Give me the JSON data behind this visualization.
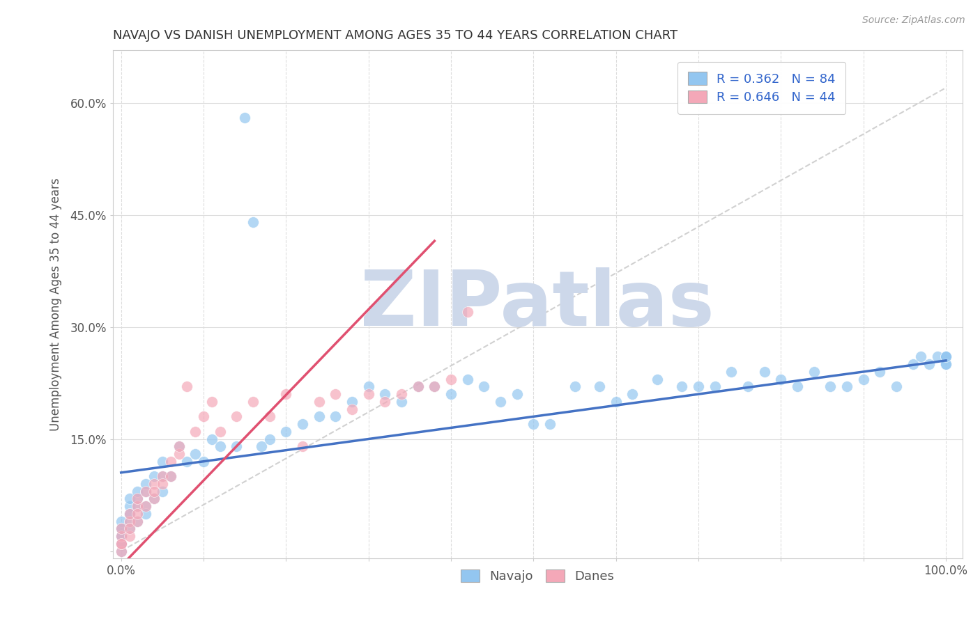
{
  "title": "NAVAJO VS DANISH UNEMPLOYMENT AMONG AGES 35 TO 44 YEARS CORRELATION CHART",
  "source": "Source: ZipAtlas.com",
  "ylabel": "Unemployment Among Ages 35 to 44 years",
  "xlim": [
    -0.01,
    1.02
  ],
  "ylim": [
    -0.01,
    0.67
  ],
  "xticks": [
    0.0,
    0.1,
    0.2,
    0.3,
    0.4,
    0.5,
    0.6,
    0.7,
    0.8,
    0.9,
    1.0
  ],
  "ytick_vals": [
    0.0,
    0.15,
    0.3,
    0.45,
    0.6
  ],
  "yticklabels": [
    "",
    "15.0%",
    "30.0%",
    "45.0%",
    "60.0%"
  ],
  "navajo_R": 0.362,
  "navajo_N": 84,
  "danes_R": 0.646,
  "danes_N": 44,
  "navajo_color": "#93c6f0",
  "danes_color": "#f4a8b8",
  "navajo_line_color": "#4472c4",
  "danes_line_color": "#e05070",
  "ref_line_color": "#cccccc",
  "background_color": "#ffffff",
  "grid_color": "#dddddd",
  "watermark_color": "#cdd8ea",
  "title_color": "#333333",
  "axis_label_color": "#555555",
  "tick_label_color": "#555555",
  "legend_text_color": "#3366cc",
  "navajo_line_x0": 0.0,
  "navajo_line_y0": 0.105,
  "navajo_line_x1": 1.0,
  "navajo_line_y1": 0.255,
  "danes_line_x0": 0.0,
  "danes_line_y0": -0.02,
  "danes_line_x1": 0.38,
  "danes_line_y1": 0.415,
  "navajo_x": [
    0.0,
    0.0,
    0.0,
    0.0,
    0.0,
    0.0,
    0.0,
    0.0,
    0.01,
    0.01,
    0.01,
    0.01,
    0.01,
    0.01,
    0.02,
    0.02,
    0.02,
    0.02,
    0.03,
    0.03,
    0.03,
    0.03,
    0.04,
    0.04,
    0.05,
    0.05,
    0.05,
    0.06,
    0.07,
    0.08,
    0.09,
    0.1,
    0.11,
    0.12,
    0.14,
    0.15,
    0.16,
    0.17,
    0.18,
    0.2,
    0.22,
    0.24,
    0.26,
    0.28,
    0.3,
    0.32,
    0.34,
    0.36,
    0.38,
    0.4,
    0.42,
    0.44,
    0.46,
    0.48,
    0.5,
    0.52,
    0.55,
    0.58,
    0.6,
    0.62,
    0.65,
    0.68,
    0.7,
    0.72,
    0.74,
    0.76,
    0.78,
    0.8,
    0.82,
    0.84,
    0.86,
    0.88,
    0.9,
    0.92,
    0.94,
    0.96,
    0.97,
    0.98,
    0.99,
    1.0,
    1.0,
    1.0,
    1.0,
    1.0
  ],
  "navajo_y": [
    0.0,
    0.01,
    0.02,
    0.01,
    0.03,
    0.02,
    0.04,
    0.03,
    0.05,
    0.04,
    0.06,
    0.03,
    0.07,
    0.05,
    0.06,
    0.04,
    0.07,
    0.08,
    0.06,
    0.05,
    0.08,
    0.09,
    0.07,
    0.1,
    0.08,
    0.1,
    0.12,
    0.1,
    0.14,
    0.12,
    0.13,
    0.12,
    0.15,
    0.14,
    0.14,
    0.58,
    0.44,
    0.14,
    0.15,
    0.16,
    0.17,
    0.18,
    0.18,
    0.2,
    0.22,
    0.21,
    0.2,
    0.22,
    0.22,
    0.21,
    0.23,
    0.22,
    0.2,
    0.21,
    0.17,
    0.17,
    0.22,
    0.22,
    0.2,
    0.21,
    0.23,
    0.22,
    0.22,
    0.22,
    0.24,
    0.22,
    0.24,
    0.23,
    0.22,
    0.24,
    0.22,
    0.22,
    0.23,
    0.24,
    0.22,
    0.25,
    0.26,
    0.25,
    0.26,
    0.26,
    0.25,
    0.26,
    0.25,
    0.26
  ],
  "danes_x": [
    0.0,
    0.0,
    0.0,
    0.0,
    0.0,
    0.01,
    0.01,
    0.01,
    0.01,
    0.02,
    0.02,
    0.02,
    0.02,
    0.03,
    0.03,
    0.04,
    0.04,
    0.04,
    0.05,
    0.05,
    0.06,
    0.06,
    0.07,
    0.07,
    0.08,
    0.09,
    0.1,
    0.11,
    0.12,
    0.14,
    0.16,
    0.18,
    0.2,
    0.22,
    0.24,
    0.26,
    0.28,
    0.3,
    0.32,
    0.34,
    0.36,
    0.38,
    0.4,
    0.42
  ],
  "danes_y": [
    0.0,
    0.01,
    0.02,
    0.01,
    0.03,
    0.02,
    0.04,
    0.03,
    0.05,
    0.04,
    0.06,
    0.05,
    0.07,
    0.06,
    0.08,
    0.07,
    0.09,
    0.08,
    0.1,
    0.09,
    0.12,
    0.1,
    0.13,
    0.14,
    0.22,
    0.16,
    0.18,
    0.2,
    0.16,
    0.18,
    0.2,
    0.18,
    0.21,
    0.14,
    0.2,
    0.21,
    0.19,
    0.21,
    0.2,
    0.21,
    0.22,
    0.22,
    0.23,
    0.32
  ]
}
